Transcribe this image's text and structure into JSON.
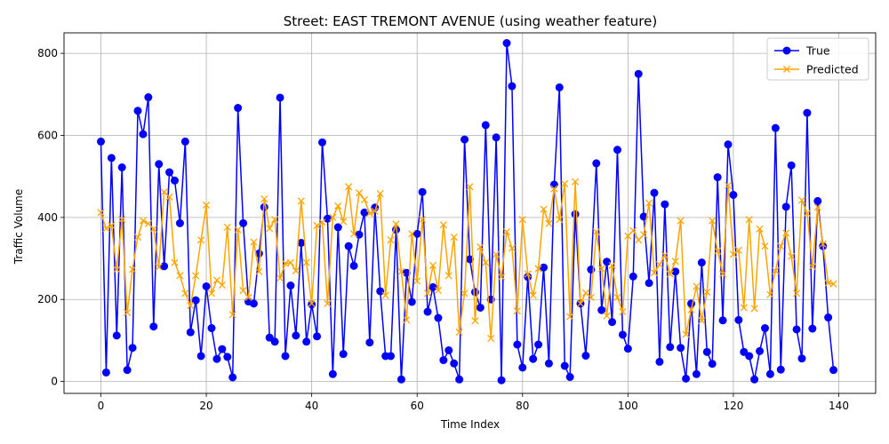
{
  "chart_data": {
    "type": "line",
    "title": "Street: EAST TREMONT AVENUE (using weather feature)",
    "xlabel": "Time Index",
    "ylabel": "Traffic Volume",
    "xlim": [
      -7,
      147
    ],
    "ylim": [
      -29,
      850
    ],
    "xticks": [
      0,
      20,
      40,
      60,
      80,
      100,
      120,
      140
    ],
    "yticks": [
      0,
      200,
      400,
      600,
      800
    ],
    "grid": true,
    "legend_position": "upper right",
    "series": [
      {
        "name": "True",
        "color": "#0000ff",
        "marker": "o",
        "values": [
          585,
          22,
          545,
          112,
          522,
          28,
          82,
          660,
          603,
          693,
          134,
          530,
          281,
          510,
          490,
          386,
          585,
          120,
          198,
          62,
          232,
          130,
          55,
          79,
          60,
          10,
          667,
          386,
          195,
          190,
          312,
          425,
          107,
          97,
          692,
          62,
          234,
          112,
          338,
          97,
          188,
          110,
          583,
          397,
          18,
          376,
          67,
          330,
          282,
          358,
          412,
          95,
          424,
          220,
          62,
          62,
          370,
          5,
          265,
          194,
          360,
          462,
          170,
          230,
          155,
          52,
          76,
          44,
          5,
          590,
          298,
          218,
          180,
          625,
          200,
          595,
          3,
          825,
          720,
          90,
          34,
          255,
          55,
          90,
          278,
          44,
          480,
          717,
          38,
          11,
          408,
          190,
          63,
          273,
          532,
          174,
          292,
          145,
          565,
          114,
          80,
          256,
          750,
          402,
          240,
          460,
          48,
          432,
          84,
          268,
          82,
          7,
          190,
          18,
          290,
          72,
          43,
          498,
          149,
          578,
          455,
          150,
          72,
          62,
          5,
          74,
          130,
          18,
          618,
          29,
          426,
          527,
          127,
          56,
          655,
          129,
          440,
          330,
          156,
          28
        ]
      },
      {
        "name": "Predicted",
        "color": "#ffa500",
        "marker": "x",
        "values": [
          412,
          373,
          380,
          273,
          395,
          168,
          273,
          352,
          392,
          385,
          372,
          279,
          462,
          450,
          290,
          258,
          215,
          185,
          258,
          345,
          430,
          215,
          247,
          235,
          376,
          163,
          370,
          222,
          205,
          340,
          268,
          445,
          373,
          395,
          252,
          288,
          290,
          270,
          440,
          290,
          190,
          380,
          388,
          190,
          400,
          428,
          390,
          475,
          360,
          460,
          443,
          410,
          415,
          458,
          210,
          345,
          384,
          268,
          150,
          360,
          245,
          395,
          215,
          283,
          222,
          382,
          258,
          352,
          120,
          215,
          475,
          148,
          328,
          290,
          105,
          310,
          255,
          365,
          325,
          172,
          395,
          262,
          210,
          275,
          420,
          385,
          470,
          395,
          482,
          158,
          487,
          190,
          216,
          205,
          365,
          275,
          160,
          283,
          205,
          170,
          355,
          368,
          345,
          358,
          435,
          265,
          285,
          308,
          262,
          293,
          392,
          115,
          175,
          232,
          148,
          218,
          392,
          318,
          262,
          478,
          310,
          320,
          180,
          395,
          178,
          372,
          330,
          212,
          270,
          330,
          362,
          305,
          215,
          442,
          410,
          280,
          425,
          335,
          240,
          238
        ]
      }
    ]
  }
}
